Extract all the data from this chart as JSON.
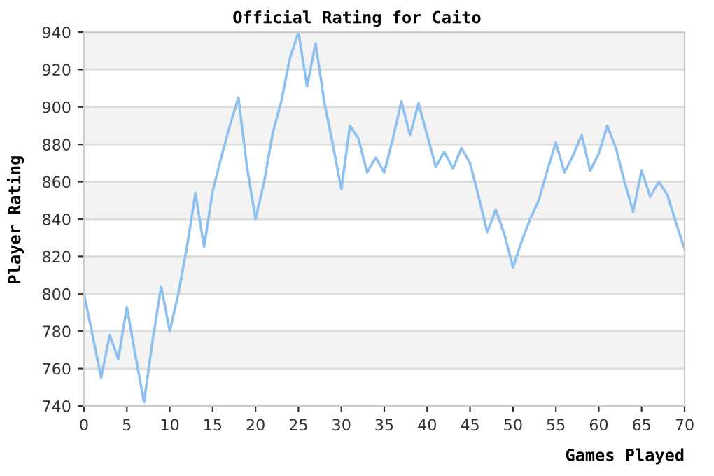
{
  "chart_data": {
    "type": "line",
    "title": "Official Rating for Caito",
    "xlabel": "Games Played",
    "ylabel": "Player Rating",
    "x": [
      0,
      1,
      2,
      3,
      4,
      5,
      6,
      7,
      8,
      9,
      10,
      11,
      12,
      13,
      14,
      15,
      16,
      17,
      18,
      19,
      20,
      21,
      22,
      23,
      24,
      25,
      26,
      27,
      28,
      29,
      30,
      31,
      32,
      33,
      34,
      35,
      36,
      37,
      38,
      39,
      40,
      41,
      42,
      43,
      44,
      45,
      46,
      47,
      48,
      49,
      50,
      51,
      52,
      53,
      54,
      55,
      56,
      57,
      58,
      59,
      60,
      61,
      62,
      63,
      64,
      65,
      66,
      67,
      68,
      69,
      70
    ],
    "series": [
      {
        "color": "#8ec0f0",
        "values": [
          800,
          778,
          755,
          778,
          765,
          793,
          767,
          742,
          775,
          804,
          780,
          800,
          825,
          854,
          825,
          855,
          873,
          890,
          905,
          868,
          840,
          860,
          886,
          903,
          926,
          940,
          911,
          934,
          903,
          880,
          856,
          890,
          883,
          865,
          873,
          865,
          883,
          903,
          885,
          902,
          885,
          868,
          876,
          867,
          878,
          870,
          852,
          833,
          845,
          832,
          814,
          828,
          840,
          850,
          866,
          881,
          865,
          874,
          885,
          866,
          875,
          890,
          878,
          860,
          844,
          866,
          852,
          860,
          853,
          838,
          824
        ]
      }
    ],
    "xlim": [
      0,
      70
    ],
    "xticks": [
      0,
      5,
      10,
      15,
      20,
      25,
      30,
      35,
      40,
      45,
      50,
      55,
      60,
      65,
      70
    ],
    "ylim": [
      740,
      940
    ],
    "yticks": [
      740,
      760,
      780,
      800,
      820,
      840,
      860,
      880,
      900,
      920,
      940
    ],
    "grid": "y",
    "marker": "none",
    "line_style": "solid"
  }
}
